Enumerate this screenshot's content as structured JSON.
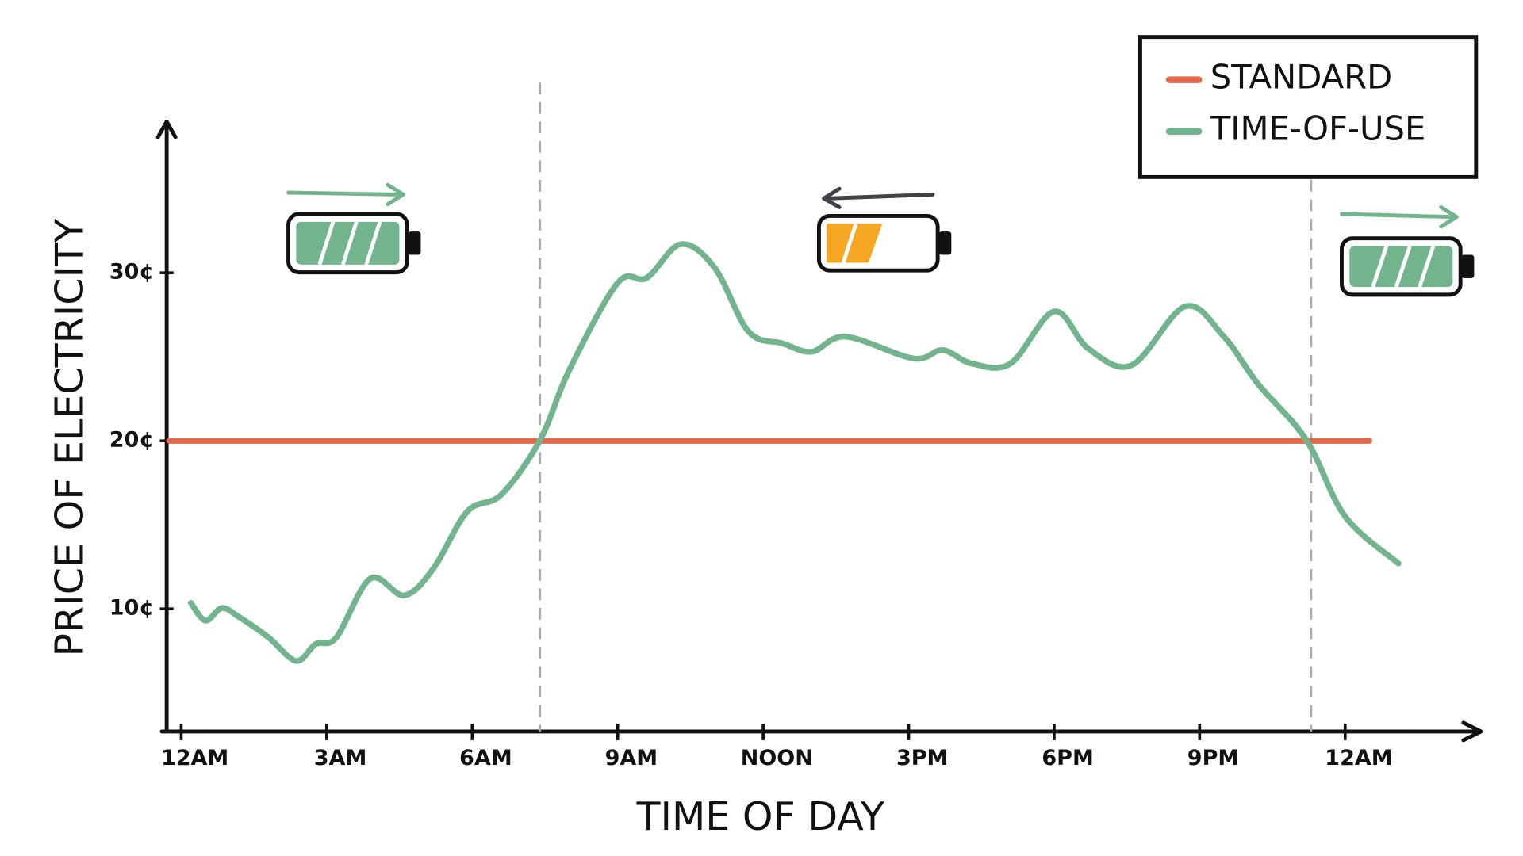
{
  "chart_data": {
    "type": "line",
    "xlabel": "TIME OF DAY",
    "ylabel": "PRICE OF ELECTRICITY",
    "xlim": [
      -0.4,
      26.8
    ],
    "ylim": [
      2.7,
      39
    ],
    "xticks": [
      {
        "value": 0,
        "label": "12AM"
      },
      {
        "value": 3,
        "label": "3AM"
      },
      {
        "value": 6,
        "label": "6AM"
      },
      {
        "value": 9,
        "label": "9AM"
      },
      {
        "value": 12,
        "label": "NOON"
      },
      {
        "value": 15,
        "label": "3PM"
      },
      {
        "value": 18,
        "label": "6PM"
      },
      {
        "value": 21,
        "label": "9PM"
      },
      {
        "value": 24,
        "label": "12AM"
      }
    ],
    "yticks": [
      {
        "value": 10,
        "label": "10¢"
      },
      {
        "value": 20,
        "label": "20¢"
      },
      {
        "value": 30,
        "label": "30¢"
      }
    ],
    "grid": false,
    "legend": "upper right",
    "vlines": [
      7.4,
      23.3
    ],
    "series": [
      {
        "name": "STANDARD",
        "color": "#e0694a",
        "x": [
          -0.25,
          24.5
        ],
        "values": [
          20,
          20
        ]
      },
      {
        "name": "TIME-OF-USE",
        "color": "#72b58d",
        "x": [
          0.2,
          0.5,
          0.84,
          1.2,
          1.8,
          2.37,
          2.77,
          3.2,
          3.9,
          4.6,
          5.2,
          5.9,
          6.6,
          7.4,
          8.0,
          9.0,
          9.6,
          10.3,
          11.0,
          11.7,
          12.4,
          13.0,
          13.7,
          15.1,
          15.7,
          16.3,
          17.1,
          18.0,
          18.7,
          19.6,
          20.7,
          21.5,
          22.2,
          23.2,
          24.0,
          25.1
        ],
        "values": [
          10.35,
          9.3,
          10.05,
          9.5,
          8.3,
          6.9,
          7.9,
          8.3,
          11.8,
          10.8,
          12.4,
          15.8,
          16.8,
          20.05,
          24.2,
          29.4,
          29.7,
          31.7,
          30.3,
          26.5,
          25.8,
          25.3,
          26.2,
          24.9,
          25.4,
          24.6,
          24.6,
          27.7,
          25.5,
          24.5,
          28.0,
          26.2,
          23.4,
          20.05,
          15.5,
          12.7
        ]
      }
    ]
  }
}
